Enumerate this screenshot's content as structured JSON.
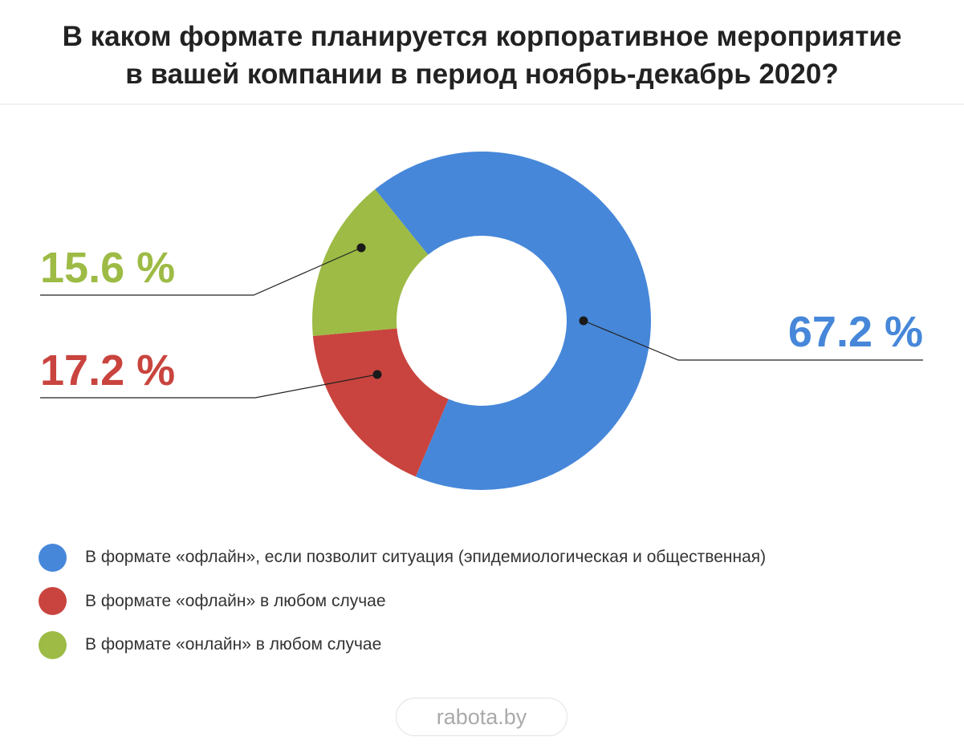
{
  "title_lines": [
    "В каком формате планируется корпоративное мероприятие",
    "в вашей компании в период ноябрь-декабрь 2020?"
  ],
  "chart_data": {
    "type": "pie",
    "variant": "donut",
    "title": "В каком формате планируется корпоративное мероприятие в вашей компании в период ноябрь-декабрь 2020?",
    "categories": [
      "В формате «офлайн», если позволит ситуация (эпидемиологическая и общественная)",
      "В формате «офлайн» в любом случае",
      "В формате «онлайн» в любом случае"
    ],
    "values": [
      67.2,
      17.2,
      15.6
    ],
    "labels": [
      "67.2 %",
      "17.2 %",
      "15.6 %"
    ],
    "colors": [
      "#4687d9",
      "#c9443e",
      "#9dbb45"
    ],
    "legend_position": "bottom-left"
  },
  "source": "rabota.by"
}
